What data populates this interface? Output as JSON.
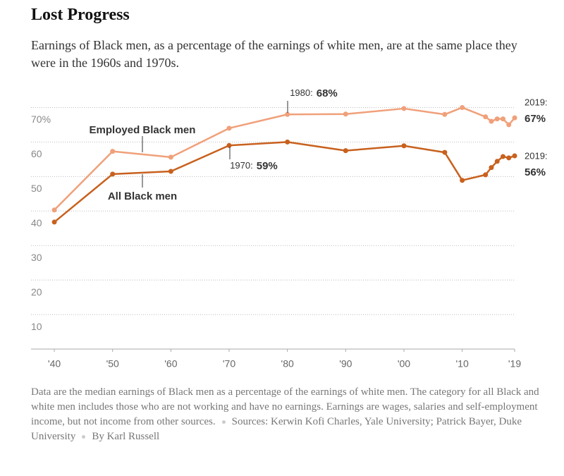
{
  "chart_data": {
    "type": "line",
    "title": "Lost Progress",
    "subtitle": "Earnings of Black men, as a percentage of the earnings of white men, are at the same place they were in the 1960s and 1970s.",
    "x": [
      1940,
      1950,
      1960,
      1970,
      1980,
      1990,
      2000,
      2007,
      2010,
      2014,
      2015,
      2016,
      2017,
      2018,
      2019
    ],
    "series": [
      {
        "name": "Employed Black men",
        "color": "#f0a07a",
        "values": [
          40.3,
          57.3,
          55.6,
          64,
          68,
          68.1,
          69.7,
          68,
          70,
          67.3,
          66,
          66.7,
          66.7,
          65,
          67
        ]
      },
      {
        "name": "All Black men",
        "color": "#c8611e",
        "values": [
          36.8,
          50.7,
          51.5,
          59,
          60,
          57.5,
          58.9,
          57,
          48.9,
          50.5,
          52.6,
          54.4,
          55.8,
          55.4,
          56
        ]
      }
    ],
    "xlim": [
      1936,
      2019
    ],
    "xticks": [
      {
        "value": 1940,
        "label": "'40"
      },
      {
        "value": 1950,
        "label": "'50"
      },
      {
        "value": 1960,
        "label": "'60"
      },
      {
        "value": 1970,
        "label": "'70"
      },
      {
        "value": 1980,
        "label": "'80"
      },
      {
        "value": 1990,
        "label": "'90"
      },
      {
        "value": 2000,
        "label": "'00"
      },
      {
        "value": 2010,
        "label": "'10"
      },
      {
        "value": 2019,
        "label": "'19"
      }
    ],
    "ylim": [
      0,
      75
    ],
    "yticks": [
      10,
      20,
      30,
      40,
      50,
      60,
      {
        "value": 70,
        "label": "70%"
      }
    ],
    "grid": true,
    "annotations": [
      {
        "label": "1980:",
        "value_label": "68%"
      },
      {
        "label": "1970:",
        "value_label": "59%"
      },
      {
        "label": "2019:",
        "value_label": "67%"
      },
      {
        "label": "2019:",
        "value_label": "56%"
      }
    ],
    "note": "Data are the median earnings of Black men as a percentage of the earnings of white men. The category for all Black and white men includes those who are not working and have no earnings. Earnings are wages, salaries and self-employment income, but not income from other sources.",
    "sources": "Sources: Kerwin Kofi Charles, Yale University; Patrick Bayer, Duke University",
    "credit": "By Karl Russell"
  }
}
